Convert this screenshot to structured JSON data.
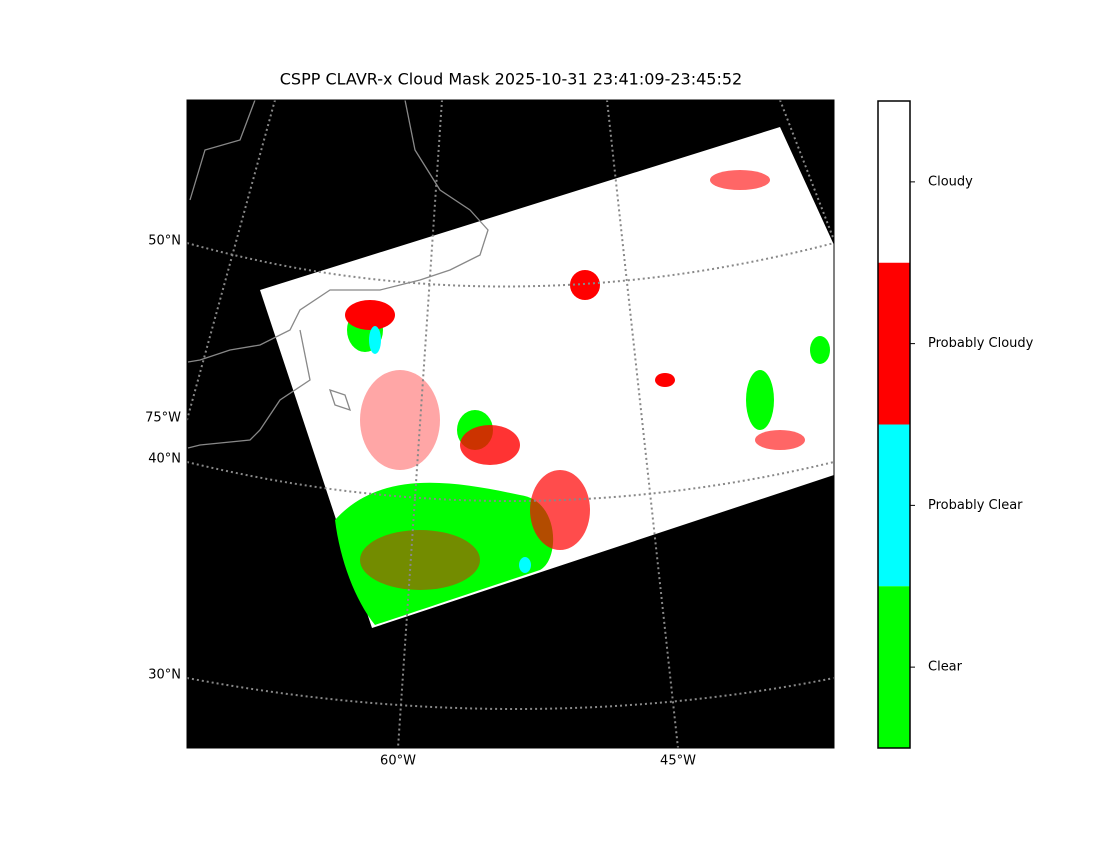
{
  "title": "CSPP CLAVR-x Cloud Mask 2025-10-31 23:41:09-23:45:52",
  "latitude_labels": [
    "50°N",
    "40°N",
    "30°N"
  ],
  "longitude_labels": [
    "75°W",
    "60°W",
    "45°W"
  ],
  "colorbar": {
    "labels": [
      "Cloudy",
      "Probably Cloudy",
      "Probably Clear",
      "Clear"
    ],
    "colors": [
      "#ffffff",
      "#ff0000",
      "#00ffff",
      "#00ff00"
    ]
  }
}
